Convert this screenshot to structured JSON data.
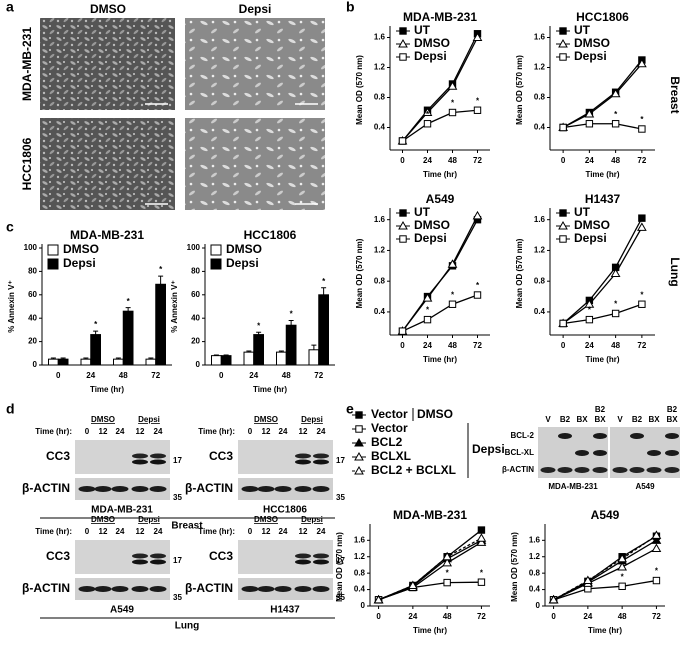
{
  "panel_labels": [
    "a",
    "b",
    "c",
    "d",
    "e"
  ],
  "micrographs": {
    "conditions": [
      "DMSO",
      "Depsi"
    ],
    "cell_lines": [
      "MDA-MB-231",
      "HCC1806"
    ]
  },
  "tissue_labels": [
    "Breast",
    "Lung"
  ],
  "chart_data": [
    {
      "type": "line",
      "title": "MDA-MB-231",
      "x_label": "Time (hr)",
      "y_label": "Mean OD (570 nm)",
      "x": [
        0,
        24,
        48,
        72
      ],
      "xlim": [
        -12,
        84
      ],
      "xticks": [
        0,
        24,
        48,
        72
      ],
      "ylim": [
        0.1,
        1.7
      ],
      "yticks": [
        0.4,
        0.8,
        1.2,
        1.6
      ],
      "legend": "upper left",
      "series": [
        {
          "name": "UT",
          "color": "#000",
          "marker": "square-filled",
          "values": [
            0.22,
            0.63,
            0.98,
            1.65
          ]
        },
        {
          "name": "DMSO",
          "color": "#000",
          "marker": "triangle-open",
          "values": [
            0.22,
            0.6,
            0.95,
            1.6
          ]
        },
        {
          "name": "Depsi",
          "color": "#000",
          "marker": "square-open",
          "values": [
            0.22,
            0.45,
            0.6,
            0.63
          ],
          "marks": [
            null,
            "*",
            "*",
            "*"
          ]
        }
      ]
    },
    {
      "type": "line",
      "title": "HCC1806",
      "x_label": "Time (hr)",
      "y_label": "Mean OD (570 nm)",
      "x": [
        0,
        24,
        48,
        72
      ],
      "xlim": [
        -12,
        84
      ],
      "xticks": [
        0,
        24,
        48,
        72
      ],
      "ylim": [
        0.1,
        1.7
      ],
      "yticks": [
        0.4,
        0.8,
        1.2,
        1.6
      ],
      "legend": "upper left",
      "series": [
        {
          "name": "UT",
          "color": "#000",
          "marker": "square-filled",
          "values": [
            0.4,
            0.6,
            0.87,
            1.3
          ]
        },
        {
          "name": "DMSO",
          "color": "#000",
          "marker": "triangle-open",
          "values": [
            0.4,
            0.58,
            0.85,
            1.25
          ]
        },
        {
          "name": "Depsi",
          "color": "#000",
          "marker": "square-open",
          "values": [
            0.4,
            0.45,
            0.45,
            0.38
          ],
          "marks": [
            null,
            null,
            "*",
            "*"
          ]
        }
      ]
    },
    {
      "type": "line",
      "title": "A549",
      "x_label": "Time (hr)",
      "y_label": "Mean OD (570 nm)",
      "x": [
        0,
        24,
        48,
        72
      ],
      "xlim": [
        -12,
        84
      ],
      "xticks": [
        0,
        24,
        48,
        72
      ],
      "ylim": [
        0.1,
        1.7
      ],
      "yticks": [
        0.4,
        0.8,
        1.2,
        1.6
      ],
      "legend": "upper left",
      "series": [
        {
          "name": "UT",
          "color": "#000",
          "marker": "square-filled",
          "values": [
            0.15,
            0.6,
            1.0,
            1.6
          ]
        },
        {
          "name": "DMSO",
          "color": "#000",
          "marker": "triangle-open",
          "values": [
            0.15,
            0.58,
            1.02,
            1.65
          ]
        },
        {
          "name": "Depsi",
          "color": "#000",
          "marker": "square-open",
          "values": [
            0.15,
            0.3,
            0.5,
            0.62
          ],
          "marks": [
            null,
            "*",
            "*",
            "*"
          ]
        }
      ]
    },
    {
      "type": "line",
      "title": "H1437",
      "x_label": "Time (hr)",
      "y_label": "Mean OD (570 nm)",
      "x": [
        0,
        24,
        48,
        72
      ],
      "xlim": [
        -12,
        84
      ],
      "xticks": [
        0,
        24,
        48,
        72
      ],
      "ylim": [
        0.1,
        1.7
      ],
      "yticks": [
        0.4,
        0.8,
        1.2,
        1.6
      ],
      "legend": "upper left",
      "series": [
        {
          "name": "UT",
          "color": "#000",
          "marker": "square-filled",
          "values": [
            0.25,
            0.55,
            0.98,
            1.62
          ]
        },
        {
          "name": "DMSO",
          "color": "#000",
          "marker": "triangle-open",
          "values": [
            0.25,
            0.5,
            0.9,
            1.5
          ]
        },
        {
          "name": "Depsi",
          "color": "#000",
          "marker": "square-open",
          "values": [
            0.25,
            0.3,
            0.38,
            0.5
          ],
          "marks": [
            null,
            "*",
            "*",
            "*"
          ]
        }
      ]
    },
    {
      "type": "bar",
      "title": "MDA-MB-231",
      "x_label": "Time (hr)",
      "y_label": "% Annexin V⁺",
      "categories": [
        0,
        24,
        48,
        72
      ],
      "ylim": [
        0,
        100
      ],
      "yticks": [
        0,
        20,
        40,
        60,
        80,
        100
      ],
      "legend": "upper left",
      "series": [
        {
          "name": "DMSO",
          "color": "#fff",
          "values": [
            5,
            5,
            5,
            5
          ],
          "errors": [
            1,
            1,
            1,
            1
          ]
        },
        {
          "name": "Depsi",
          "color": "#000",
          "values": [
            5,
            26,
            46,
            69
          ],
          "errors": [
            1,
            3,
            3,
            7
          ],
          "marks": [
            null,
            "*",
            "*",
            "*"
          ]
        }
      ]
    },
    {
      "type": "bar",
      "title": "HCC1806",
      "x_label": "Time (hr)",
      "y_label": "% Annexin V⁺",
      "categories": [
        0,
        24,
        48,
        72
      ],
      "ylim": [
        0,
        100
      ],
      "yticks": [
        0,
        20,
        40,
        60,
        80,
        100
      ],
      "legend": "upper left",
      "series": [
        {
          "name": "DMSO",
          "color": "#fff",
          "values": [
            8,
            11,
            11,
            13
          ],
          "errors": [
            0.5,
            1,
            1,
            4
          ]
        },
        {
          "name": "Depsi",
          "color": "#000",
          "values": [
            8,
            26,
            34,
            60
          ],
          "errors": [
            0.5,
            2,
            4,
            6
          ],
          "marks": [
            null,
            "*",
            "*",
            "*"
          ]
        }
      ]
    },
    {
      "type": "line",
      "title": "MDA-MB-231",
      "x_label": "Time (hr)",
      "y_label": "Mean OD (570 nm)",
      "x": [
        0,
        24,
        48,
        72
      ],
      "xlim": [
        -6,
        78
      ],
      "xticks": [
        0,
        24,
        48,
        72
      ],
      "ylim": [
        0,
        1.9
      ],
      "yticks": [
        0,
        0.4,
        0.8,
        1.2,
        1.6
      ],
      "series": [
        {
          "name": "Vector",
          "color": "#000",
          "marker": "square-filled",
          "values": [
            0.15,
            0.5,
            1.2,
            1.85
          ]
        },
        {
          "name": "Vector",
          "color": "#000",
          "marker": "square-open",
          "values": [
            0.15,
            0.45,
            0.57,
            0.58
          ],
          "marks": [
            null,
            null,
            "*",
            "*"
          ]
        },
        {
          "name": "BCL2",
          "color": "#000",
          "marker": "triangle-filled",
          "values": [
            0.15,
            0.48,
            1.15,
            1.6
          ]
        },
        {
          "name": "BCLXL",
          "color": "#000",
          "marker": "triangle-open",
          "values": [
            0.15,
            0.45,
            1.05,
            1.55
          ]
        },
        {
          "name": "BCL2 + BCLXL",
          "color": "#000",
          "marker": "triangle-open",
          "dash": true,
          "values": [
            0.15,
            0.5,
            1.2,
            1.65
          ]
        }
      ]
    },
    {
      "type": "line",
      "title": "A549",
      "x_label": "Time (hr)",
      "y_label": "Mean OD (570 nm)",
      "x": [
        0,
        24,
        48,
        72
      ],
      "xlim": [
        -6,
        78
      ],
      "xticks": [
        0,
        24,
        48,
        72
      ],
      "ylim": [
        0,
        1.9
      ],
      "yticks": [
        0,
        0.4,
        0.8,
        1.2,
        1.6
      ],
      "series": [
        {
          "name": "Vector",
          "color": "#000",
          "marker": "square-filled",
          "values": [
            0.15,
            0.6,
            1.2,
            1.7
          ]
        },
        {
          "name": "Vector",
          "color": "#000",
          "marker": "square-open",
          "values": [
            0.15,
            0.42,
            0.48,
            0.62
          ],
          "marks": [
            null,
            null,
            "*",
            "*"
          ]
        },
        {
          "name": "BCL2",
          "color": "#000",
          "marker": "triangle-filled",
          "values": [
            0.15,
            0.58,
            1.1,
            1.6
          ]
        },
        {
          "name": "BCLXL",
          "color": "#000",
          "marker": "triangle-open",
          "values": [
            0.15,
            0.55,
            0.95,
            1.4
          ]
        },
        {
          "name": "BCL2 + BCLXL",
          "color": "#000",
          "marker": "triangle-open",
          "dash": true,
          "values": [
            0.15,
            0.62,
            1.15,
            1.72
          ]
        }
      ]
    }
  ],
  "western_d": {
    "time_label": "Time (hr):",
    "treatments": [
      "DMSO",
      "Depsi"
    ],
    "times": [
      "0",
      "12",
      "24",
      "12",
      "24"
    ],
    "proteins": [
      "CC3",
      "β-ACTIN"
    ],
    "size_markers": [
      "17",
      "35"
    ],
    "cell_lines": [
      "MDA-MB-231",
      "HCC1806",
      "A549",
      "H1437"
    ]
  },
  "legend_e": {
    "treatments": [
      "DMSO",
      "Depsi"
    ]
  },
  "western_e": {
    "lanes": [
      "V",
      "B2",
      "BX"
    ],
    "proteins": [
      "BCL-2",
      "BCL-XL",
      "β-ACTIN"
    ],
    "cell_lines": [
      "MDA-MB-231",
      "A549"
    ]
  }
}
